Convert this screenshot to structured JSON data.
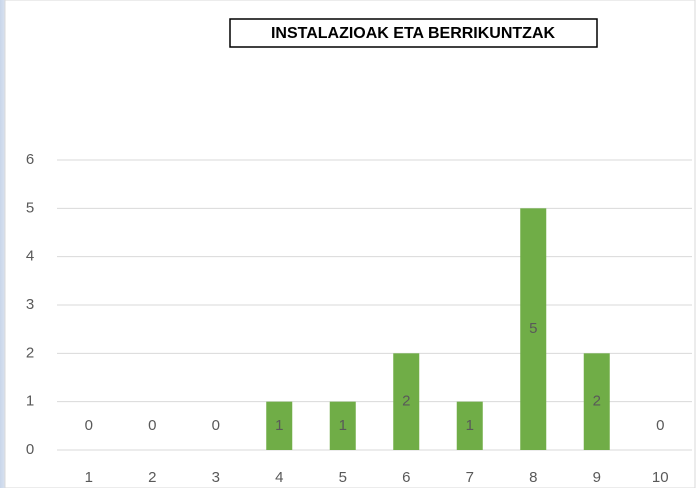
{
  "chart_data": {
    "type": "bar",
    "title": "INSTALAZIOAK ETA BERRIKUNTZAK",
    "categories": [
      "1",
      "2",
      "3",
      "4",
      "5",
      "6",
      "7",
      "8",
      "9",
      "10"
    ],
    "values": [
      0,
      0,
      0,
      1,
      1,
      2,
      1,
      5,
      2,
      0
    ],
    "color": "#70ad47",
    "ylim": [
      0,
      6
    ],
    "yticks": [
      0,
      1,
      2,
      3,
      4,
      5,
      6
    ],
    "grid": true
  }
}
